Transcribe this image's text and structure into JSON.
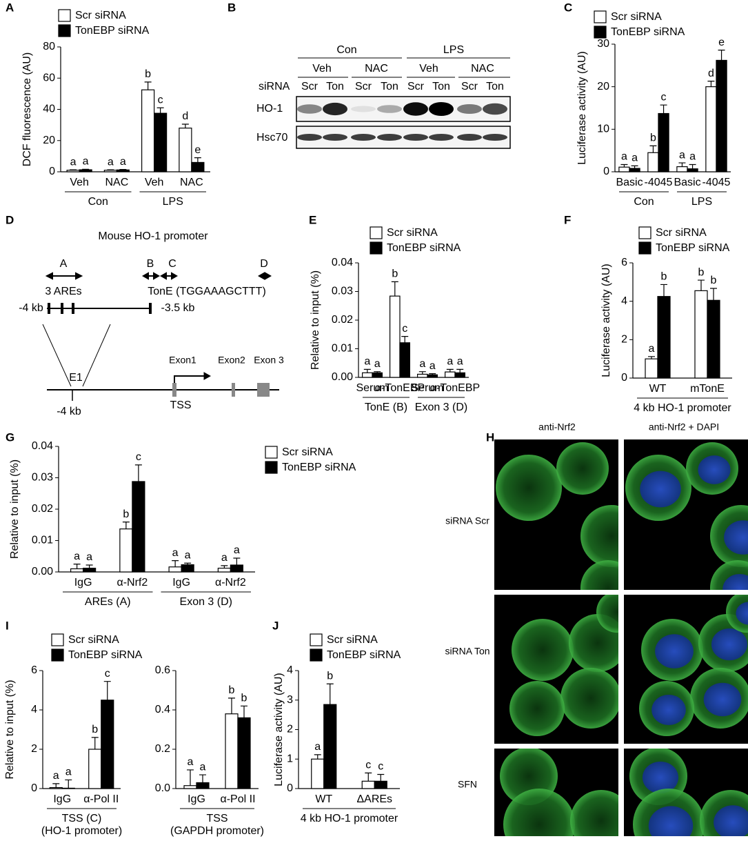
{
  "chart_data": [
    {
      "type": "bar",
      "panel_label": "A",
      "ylabel": "DCF fluorescence (AU)",
      "ylim": [
        0,
        80
      ],
      "yticks": [
        0,
        20,
        40,
        60,
        80
      ],
      "categories": [
        "Veh",
        "NAC",
        "Veh",
        "NAC"
      ],
      "groups": [
        "Con",
        "LPS"
      ],
      "series": [
        {
          "name": "Scr siRNA",
          "color": "#ffffff",
          "values": [
            1,
            1,
            52.5,
            28
          ],
          "errors": [
            0.3,
            0.3,
            5,
            2.5
          ],
          "letters": [
            "a",
            "a",
            "b",
            "d"
          ]
        },
        {
          "name": "TonEBP siRNA",
          "color": "#000000",
          "values": [
            1.3,
            1.2,
            37.5,
            6
          ],
          "errors": [
            0.3,
            0.3,
            3.5,
            3
          ],
          "letters": [
            "a",
            "a",
            "c",
            "e"
          ]
        }
      ]
    },
    {
      "type": "bar",
      "panel_label": "C",
      "ylabel": "Luciferase activity (AU)",
      "ylim": [
        0,
        30
      ],
      "yticks": [
        0,
        10,
        20,
        30
      ],
      "categories": [
        "Basic",
        "-4045",
        "Basic",
        "-4045"
      ],
      "groups": [
        "Con",
        "LPS"
      ],
      "series": [
        {
          "name": "Scr siRNA",
          "color": "#ffffff",
          "values": [
            1.1,
            4.5,
            1.2,
            20
          ],
          "errors": [
            0.6,
            1.6,
            0.9,
            1.3
          ],
          "letters": [
            "a",
            "b",
            "a",
            "d"
          ]
        },
        {
          "name": "TonEBP siRNA",
          "color": "#000000",
          "values": [
            0.8,
            13.7,
            0.7,
            26.2
          ],
          "errors": [
            0.6,
            2,
            1,
            2.4
          ],
          "letters": [
            "a",
            "c",
            "a",
            "e"
          ]
        }
      ]
    },
    {
      "type": "bar",
      "panel_label": "E",
      "ylabel": "Relative to input (%)",
      "ylim": [
        0,
        0.04
      ],
      "yticks": [
        {
          "value": 0,
          "label": "0.00"
        },
        {
          "value": 0.01,
          "label": "0.01"
        },
        {
          "value": 0.02,
          "label": "0.02"
        },
        {
          "value": 0.03,
          "label": "0.03"
        },
        {
          "value": 0.04,
          "label": "0.04"
        }
      ],
      "categories": [
        "Serum",
        "α-TonEBP",
        "Serum",
        "α-TonEBP"
      ],
      "groups": [
        "TonE (B)",
        "Exon 3 (D)"
      ],
      "series": [
        {
          "name": "Scr siRNA",
          "color": "#ffffff",
          "values": [
            0.0016,
            0.0284,
            0.0011,
            0.0019
          ],
          "errors": [
            0.0012,
            0.005,
            0.0009,
            0.0009
          ],
          "letters": [
            "a",
            "b",
            "a",
            "a"
          ]
        },
        {
          "name": "TonEBP siRNA",
          "color": "#000000",
          "values": [
            0.0016,
            0.0121,
            0.0009,
            0.0016
          ],
          "errors": [
            0.0004,
            0.0022,
            0.0004,
            0.0012
          ],
          "letters": [
            "a",
            "c",
            "a",
            "a"
          ]
        }
      ]
    },
    {
      "type": "bar",
      "panel_label": "F",
      "ylabel": "Luciferase activity (AU)",
      "ylim": [
        0,
        6
      ],
      "yticks": [
        0,
        2,
        4,
        6
      ],
      "categories": [
        "WT",
        "mTonE"
      ],
      "groups": [
        "4 kb HO-1 promoter"
      ],
      "series": [
        {
          "name": "Scr siRNA",
          "color": "#ffffff",
          "values": [
            1,
            4.55
          ],
          "errors": [
            0.12,
            0.55
          ],
          "letters": [
            "a",
            "b"
          ]
        },
        {
          "name": "TonEBP siRNA",
          "color": "#000000",
          "values": [
            4.25,
            4.05
          ],
          "errors": [
            0.62,
            0.62
          ],
          "letters": [
            "b",
            "b"
          ]
        }
      ]
    },
    {
      "type": "bar",
      "panel_label": "G",
      "ylabel": "Relative to input (%)",
      "ylim": [
        0,
        0.04
      ],
      "yticks": [
        {
          "value": 0,
          "label": "0.00"
        },
        {
          "value": 0.01,
          "label": "0.01"
        },
        {
          "value": 0.02,
          "label": "0.02"
        },
        {
          "value": 0.03,
          "label": "0.03"
        },
        {
          "value": 0.04,
          "label": "0.04"
        }
      ],
      "categories": [
        "IgG",
        "α-Nrf2",
        "IgG",
        "α-Nrf2"
      ],
      "groups": [
        "AREs (A)",
        "Exon 3 (D)"
      ],
      "series": [
        {
          "name": "Scr siRNA",
          "color": "#ffffff",
          "values": [
            0.001,
            0.0137,
            0.0016,
            0.0012
          ],
          "errors": [
            0.0015,
            0.0022,
            0.002,
            0.0008
          ],
          "letters": [
            "a",
            "b",
            "a",
            "a"
          ]
        },
        {
          "name": "TonEBP siRNA",
          "color": "#000000",
          "values": [
            0.0012,
            0.0288,
            0.0023,
            0.0022
          ],
          "errors": [
            0.001,
            0.0053,
            0.0005,
            0.0022
          ],
          "letters": [
            "a",
            "c",
            "a",
            "a"
          ]
        }
      ]
    },
    {
      "type": "bar",
      "panel_label": "I",
      "ylabel": "Relative to input (%)",
      "ylim": [
        0,
        6
      ],
      "yticks": [
        0,
        2,
        4,
        6
      ],
      "categories": [
        "IgG",
        "α-Pol II"
      ],
      "groups": [
        "TSS (C)"
      ],
      "group_note": "(HO-1 promoter)",
      "series": [
        {
          "name": "Scr siRNA",
          "color": "#ffffff",
          "values": [
            0.05,
            2.0
          ],
          "errors": [
            0.2,
            0.6
          ],
          "letters": [
            "a",
            "b"
          ]
        },
        {
          "name": "TonEBP siRNA",
          "color": "#000000",
          "values": [
            0.02,
            4.5
          ],
          "errors": [
            0.42,
            0.95
          ],
          "letters": [
            "a",
            "c"
          ]
        }
      ]
    },
    {
      "type": "bar",
      "ylim": [
        0,
        0.6
      ],
      "yticks": [
        {
          "value": 0,
          "label": "0.0"
        },
        0.2,
        0.4,
        0.6
      ],
      "categories": [
        "IgG",
        "α-Pol II"
      ],
      "groups": [
        "TSS"
      ],
      "group_note": "(GAPDH promoter)",
      "series": [
        {
          "color": "#ffffff",
          "values": [
            0.015,
            0.38
          ],
          "errors": [
            0.08,
            0.08
          ],
          "letters": [
            "a",
            "b"
          ]
        },
        {
          "color": "#000000",
          "values": [
            0.03,
            0.36
          ],
          "errors": [
            0.04,
            0.06
          ],
          "letters": [
            "a",
            "b"
          ]
        }
      ]
    },
    {
      "type": "bar",
      "panel_label": "J",
      "ylabel": "Luciferase activity (AU)",
      "ylim": [
        0,
        4
      ],
      "yticks": [
        0,
        1,
        2,
        3,
        4
      ],
      "categories": [
        "WT",
        "ΔAREs"
      ],
      "groups": [
        "4 kb HO-1 promoter"
      ],
      "series": [
        {
          "name": "Scr siRNA",
          "color": "#ffffff",
          "values": [
            1,
            0.25
          ],
          "errors": [
            0.15,
            0.28
          ],
          "letters": [
            "a",
            "c"
          ]
        },
        {
          "name": "TonEBP siRNA",
          "color": "#000000",
          "values": [
            2.85,
            0.25
          ],
          "errors": [
            0.7,
            0.23
          ],
          "letters": [
            "b",
            "c"
          ]
        }
      ]
    }
  ],
  "blot": {
    "panel_label": "B",
    "conditions": [
      "Con",
      "LPS"
    ],
    "treatments": [
      "Veh",
      "NAC",
      "Veh",
      "NAC"
    ],
    "row_label": "siRNA",
    "lanes": [
      "Scr",
      "Ton",
      "Scr",
      "Ton",
      "Scr",
      "Ton",
      "Scr",
      "Ton"
    ],
    "bands": [
      "HO-1",
      "Hsc70"
    ]
  },
  "diagram": {
    "panel_label": "D",
    "title": "Mouse HO-1 promoter",
    "regions": [
      "A",
      "B",
      "C",
      "D"
    ],
    "ares_label": "3 AREs",
    "tone_label": "TonE (TGGAAAGCTTT)",
    "start": "-4 kb",
    "end": "-3.5 kb",
    "enhancer": "E1",
    "exons": [
      "Exon1",
      "Exon2",
      "Exon 3"
    ],
    "tss": "TSS",
    "position": "-4 kb"
  },
  "micrographs": {
    "panel_label": "H",
    "columns": [
      "anti-Nrf2",
      "anti-Nrf2 + DAPI"
    ],
    "rows": [
      "siRNA Scr",
      "siRNA Ton",
      "SFN"
    ]
  }
}
